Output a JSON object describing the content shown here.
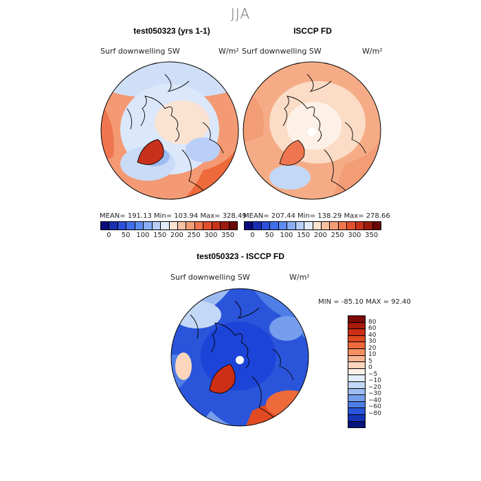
{
  "season": "JJA",
  "panels": [
    {
      "title": "test050323 (yrs 1-1)",
      "variable": "Surf downwelling SW",
      "units": "W/m²",
      "stats": "MEAN= 191.13   Min= 103.94   Max= 328.49"
    },
    {
      "title": "ISCCP FD",
      "variable": "Surf downwelling SW",
      "units": "W/m²",
      "stats": "MEAN= 207.44   Min= 138.29   Max= 278.66"
    },
    {
      "title": "test050323 - ISCCP FD",
      "variable": "Surf downwelling SW",
      "units": "W/m²",
      "stats": "MIN = -85.10  MAX =  92.40"
    }
  ],
  "abs_colorbar": {
    "ticks": [
      "0",
      "50",
      "100",
      "150",
      "200",
      "250",
      "300",
      "350"
    ],
    "colors": [
      "#0a0a7a",
      "#1a2eb0",
      "#2b4fd8",
      "#3f6ee8",
      "#5d8cf0",
      "#89aef3",
      "#b9cff7",
      "#e0ebfb",
      "#fbe3d2",
      "#f7c2a3",
      "#f39d77",
      "#ee754f",
      "#e2502f",
      "#c8321c",
      "#9c1a0e",
      "#6a0606"
    ]
  },
  "diff_colorbar": {
    "labels": [
      "80",
      "60",
      "40",
      "30",
      "20",
      "10",
      "5",
      "0",
      "−5",
      "−10",
      "−20",
      "−30",
      "−40",
      "−60",
      "−80"
    ],
    "colors": [
      "#7a0a05",
      "#a81a0c",
      "#cc2e16",
      "#e14a22",
      "#ee6a3a",
      "#f38f62",
      "#f7b490",
      "#fbd6bd",
      "#fdf0e6",
      "#e3edfb",
      "#c3d8f6",
      "#9dbcf1",
      "#779ded",
      "#4f7ee7",
      "#2a55da",
      "#1534b8",
      "#06157e"
    ]
  },
  "colors": {
    "ocean_warm": "#f3a07a",
    "cool": "#c9dbf6",
    "deep_blue": "#1d44d8",
    "red": "#c8321c"
  }
}
